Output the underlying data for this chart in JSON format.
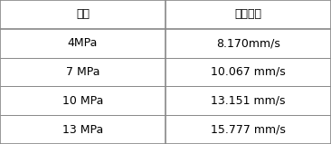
{
  "headers": [
    "压强",
    "平均燃速"
  ],
  "rows": [
    [
      "4MPa",
      "8.170mm/s"
    ],
    [
      "7 MPa",
      "10.067 mm/s"
    ],
    [
      "10 MPa",
      "13.151 mm/s"
    ],
    [
      "13 MPa",
      "15.777 mm/s"
    ]
  ],
  "bg_color": "#ffffff",
  "border_color": "#888888",
  "text_color": "#000000",
  "fontsize": 9,
  "fig_width": 3.66,
  "fig_height": 1.59,
  "dpi": 100,
  "col_split": 0.5,
  "outer_lw": 1.2,
  "inner_lw": 0.7
}
